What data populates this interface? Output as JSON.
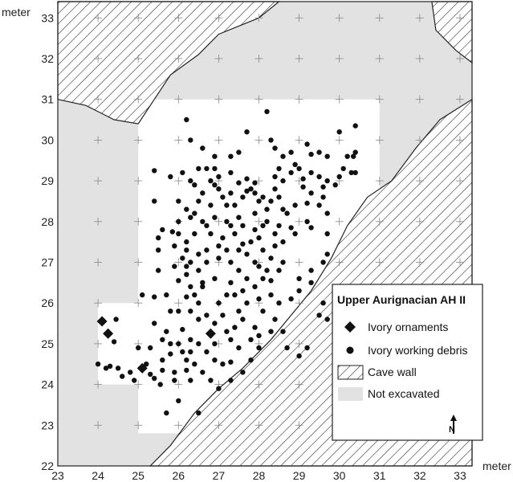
{
  "chart_data": {
    "type": "scatter",
    "title": "",
    "xlabel": "meter",
    "ylabel": "meter",
    "xlim": [
      23,
      33.3
    ],
    "ylim": [
      22,
      33.4
    ],
    "x_ticks": [
      "23",
      "24",
      "25",
      "26",
      "27",
      "28",
      "29",
      "30",
      "31",
      "32",
      "33"
    ],
    "y_ticks": [
      "22",
      "23",
      "24",
      "25",
      "26",
      "27",
      "28",
      "29",
      "30",
      "31",
      "32",
      "33"
    ],
    "grid": "cross markers at integer meter intersections",
    "colors": {
      "not_excavated": "#e2e2e2",
      "excavated": "#ffffff",
      "hatch": "#333333",
      "points": "#111111"
    },
    "regions": {
      "not_excavated": [
        [
          23,
          22
        ],
        [
          33.3,
          22
        ],
        [
          33.3,
          33.4
        ],
        [
          23,
          33.4
        ]
      ],
      "excavated": [
        [
          24,
          24
        ],
        [
          25,
          24
        ],
        [
          25,
          22.8
        ],
        [
          31,
          22.8
        ],
        [
          31,
          31
        ],
        [
          25,
          31
        ],
        [
          25,
          30
        ],
        [
          25,
          26
        ],
        [
          24,
          26
        ]
      ],
      "cave_wall": [
        [
          [
            23,
            33.4
          ],
          [
            28.5,
            33.4
          ],
          [
            28.0,
            33.0
          ],
          [
            27.0,
            32.6
          ],
          [
            26.5,
            32.1
          ],
          [
            25.8,
            31.6
          ],
          [
            25.4,
            31.0
          ],
          [
            25.0,
            30.4
          ],
          [
            24.4,
            30.5
          ],
          [
            23.7,
            30.85
          ],
          [
            23,
            31.0
          ]
        ],
        [
          [
            32.3,
            33.4
          ],
          [
            33.3,
            33.4
          ],
          [
            33.3,
            31.9
          ],
          [
            32.9,
            32.2
          ],
          [
            32.4,
            32.7
          ]
        ],
        [
          [
            33.3,
            31.0
          ],
          [
            33.3,
            22
          ],
          [
            25.3,
            22
          ],
          [
            25.8,
            22.5
          ],
          [
            26.4,
            23.3
          ],
          [
            27.0,
            23.9
          ],
          [
            27.6,
            24.4
          ],
          [
            28.3,
            25.1
          ],
          [
            28.8,
            25.7
          ],
          [
            29.3,
            26.3
          ],
          [
            29.8,
            27.1
          ],
          [
            30.2,
            27.9
          ],
          [
            30.7,
            28.6
          ],
          [
            31.3,
            29.0
          ],
          [
            31.9,
            29.8
          ],
          [
            32.5,
            30.5
          ]
        ]
      ]
    },
    "legend": {
      "placement": "bottom-right",
      "title": "Upper Aurignacian AH II",
      "entries": [
        "Ivory ornaments",
        "Ivory working debris",
        "Cave wall",
        "Not excavated"
      ],
      "north_label": "N"
    },
    "series": [
      {
        "name": "Ivory ornaments",
        "marker": "diamond",
        "points": [
          [
            24.1,
            25.55
          ],
          [
            24.25,
            25.25
          ],
          [
            25.1,
            24.4
          ],
          [
            26.8,
            25.25
          ]
        ]
      },
      {
        "name": "Ivory working debris",
        "marker": "circle",
        "points": [
          [
            24.0,
            24.5
          ],
          [
            24.3,
            24.45
          ],
          [
            24.45,
            25.6
          ],
          [
            24.5,
            24.4
          ],
          [
            24.8,
            24.3
          ],
          [
            25.3,
            24.25
          ],
          [
            25.55,
            24.0
          ],
          [
            25.6,
            24.35
          ],
          [
            25.4,
            24.15
          ],
          [
            25.8,
            24.75
          ],
          [
            25.9,
            24.1
          ],
          [
            26.0,
            23.6
          ],
          [
            26.3,
            24.1
          ],
          [
            26.2,
            24.35
          ],
          [
            26.2,
            24.6
          ],
          [
            26.5,
            23.3
          ],
          [
            25.7,
            23.3
          ],
          [
            25.4,
            26.15
          ],
          [
            25.7,
            26.2
          ],
          [
            25.1,
            26.2
          ],
          [
            25.5,
            27.6
          ],
          [
            25.6,
            27.8
          ],
          [
            25.85,
            27.75
          ],
          [
            25.9,
            26.9
          ],
          [
            25.8,
            25.8
          ],
          [
            26.0,
            25.8
          ],
          [
            26.0,
            26.55
          ],
          [
            26.2,
            26.7
          ],
          [
            26.2,
            26.9
          ],
          [
            26.1,
            27.1
          ],
          [
            26.0,
            27.7
          ],
          [
            26.4,
            27.7
          ],
          [
            26.7,
            27.3
          ],
          [
            26.3,
            27.0
          ],
          [
            26.5,
            26.8
          ],
          [
            26.6,
            26.5
          ],
          [
            26.4,
            26.2
          ],
          [
            26.3,
            25.8
          ],
          [
            26.5,
            25.6
          ],
          [
            26.7,
            25.7
          ],
          [
            26.1,
            25.35
          ],
          [
            26.3,
            25.1
          ],
          [
            26.5,
            25.0
          ],
          [
            26.7,
            24.8
          ],
          [
            26.9,
            25.0
          ],
          [
            26.3,
            24.8
          ],
          [
            26.0,
            25.0
          ],
          [
            25.9,
            24.3
          ],
          [
            26.8,
            24.1
          ],
          [
            26.9,
            24.6
          ],
          [
            27.1,
            24.5
          ],
          [
            27.3,
            24.55
          ],
          [
            27.5,
            24.9
          ],
          [
            27.2,
            25.3
          ],
          [
            27.3,
            25.1
          ],
          [
            27.0,
            26.0
          ],
          [
            27.3,
            26.5
          ],
          [
            27.5,
            26.8
          ],
          [
            27.3,
            27.0
          ],
          [
            27.0,
            27.4
          ],
          [
            27.4,
            27.7
          ],
          [
            27.2,
            28.0
          ],
          [
            27.5,
            28.1
          ],
          [
            27.2,
            28.4
          ],
          [
            27.3,
            28.7
          ],
          [
            27.0,
            28.8
          ],
          [
            26.8,
            29.0
          ],
          [
            26.8,
            28.4
          ],
          [
            26.6,
            28.0
          ],
          [
            26.5,
            28.5
          ],
          [
            26.3,
            29.0
          ],
          [
            26.1,
            29.2
          ],
          [
            25.8,
            29.1
          ],
          [
            25.4,
            29.25
          ],
          [
            26.0,
            28.5
          ],
          [
            26.2,
            27.5
          ],
          [
            27.6,
            28.6
          ],
          [
            27.7,
            28.75
          ],
          [
            27.8,
            28.8
          ],
          [
            27.9,
            28.7
          ],
          [
            28.0,
            28.5
          ],
          [
            28.2,
            28.3
          ],
          [
            28.3,
            28.5
          ],
          [
            28.5,
            28.6
          ],
          [
            28.4,
            28.8
          ],
          [
            28.6,
            29.0
          ],
          [
            28.8,
            29.2
          ],
          [
            29.0,
            29.3
          ],
          [
            29.1,
            29.05
          ],
          [
            29.3,
            29.2
          ],
          [
            29.5,
            29.1
          ],
          [
            29.7,
            29.0
          ],
          [
            29.9,
            28.9
          ],
          [
            30.1,
            29.3
          ],
          [
            30.3,
            29.2
          ],
          [
            30.35,
            29.6
          ],
          [
            30.4,
            29.7
          ],
          [
            30.4,
            30.35
          ],
          [
            30.0,
            30.2
          ],
          [
            29.7,
            29.6
          ],
          [
            29.2,
            29.9
          ],
          [
            28.8,
            29.7
          ],
          [
            28.2,
            30.7
          ],
          [
            27.7,
            30.2
          ],
          [
            28.3,
            30.0
          ],
          [
            27.5,
            29.7
          ],
          [
            27.3,
            29.6
          ],
          [
            26.9,
            29.6
          ],
          [
            26.3,
            30.0
          ],
          [
            26.2,
            30.5
          ],
          [
            28.6,
            29.6
          ],
          [
            29.5,
            29.7
          ],
          [
            28.0,
            27.6
          ],
          [
            28.1,
            27.3
          ],
          [
            28.3,
            27.1
          ],
          [
            28.0,
            26.9
          ],
          [
            28.2,
            26.8
          ],
          [
            28.3,
            26.55
          ],
          [
            28.0,
            26.1
          ],
          [
            28.1,
            25.8
          ],
          [
            27.9,
            25.4
          ],
          [
            28.0,
            25.2
          ],
          [
            27.8,
            25.1
          ],
          [
            28.0,
            24.9
          ],
          [
            27.6,
            26.3
          ],
          [
            27.5,
            25.8
          ],
          [
            27.7,
            27.2
          ],
          [
            27.6,
            27.45
          ],
          [
            27.8,
            27.5
          ],
          [
            27.9,
            27.8
          ],
          [
            28.2,
            28.0
          ],
          [
            28.7,
            28.2
          ],
          [
            28.8,
            27.85
          ],
          [
            28.9,
            27.7
          ],
          [
            29.2,
            28.0
          ],
          [
            29.3,
            27.85
          ],
          [
            29.2,
            28.45
          ],
          [
            29.5,
            28.4
          ],
          [
            29.3,
            28.7
          ],
          [
            29.6,
            28.6
          ],
          [
            29.7,
            28.2
          ],
          [
            29.7,
            27.7
          ],
          [
            29.7,
            27.2
          ],
          [
            29.6,
            27.0
          ],
          [
            29.3,
            26.8
          ],
          [
            29.3,
            26.5
          ],
          [
            29.0,
            26.6
          ],
          [
            29.0,
            26.3
          ],
          [
            28.8,
            26.1
          ],
          [
            29.6,
            26.0
          ],
          [
            29.7,
            25.6
          ],
          [
            29.5,
            25.7
          ],
          [
            29.2,
            24.9
          ],
          [
            29.0,
            24.7
          ],
          [
            30.4,
            29.2
          ],
          [
            30.2,
            29.6
          ],
          [
            28.4,
            29.8
          ],
          [
            28.5,
            29.3
          ],
          [
            28.4,
            29.1
          ],
          [
            28.9,
            29.4
          ],
          [
            29.3,
            29.65
          ],
          [
            29.6,
            28.85
          ],
          [
            30.0,
            29.1
          ],
          [
            29.1,
            28.85
          ],
          [
            28.9,
            28.4
          ],
          [
            28.6,
            28.3
          ],
          [
            28.5,
            27.9
          ],
          [
            28.1,
            28.6
          ],
          [
            27.9,
            28.95
          ],
          [
            27.7,
            29.05
          ],
          [
            27.5,
            28.95
          ],
          [
            26.9,
            28.9
          ],
          [
            27.1,
            28.6
          ],
          [
            26.7,
            29.3
          ],
          [
            26.6,
            29.8
          ],
          [
            25.4,
            28.5
          ],
          [
            25.5,
            27.3
          ],
          [
            25.5,
            26.8
          ],
          [
            25.6,
            25.1
          ],
          [
            25.4,
            25.5
          ],
          [
            25.7,
            25.3
          ],
          [
            25.6,
            24.6
          ],
          [
            25.2,
            24.5
          ],
          [
            25.0,
            24.9
          ],
          [
            25.3,
            24.9
          ],
          [
            24.9,
            24.1
          ],
          [
            24.2,
            24.4
          ],
          [
            24.6,
            24.2
          ],
          [
            24.4,
            25.05
          ],
          [
            25.8,
            25.0
          ],
          [
            26.5,
            26.0
          ],
          [
            26.2,
            26.15
          ],
          [
            26.6,
            26.4
          ],
          [
            26.3,
            26.4
          ],
          [
            26.9,
            26.6
          ],
          [
            26.7,
            27.0
          ],
          [
            27.0,
            27.1
          ],
          [
            26.8,
            27.7
          ],
          [
            27.1,
            27.6
          ],
          [
            27.3,
            27.9
          ],
          [
            26.9,
            28.1
          ],
          [
            26.7,
            27.9
          ],
          [
            26.4,
            28.2
          ],
          [
            26.2,
            28.3
          ],
          [
            26.6,
            28.7
          ],
          [
            26.4,
            28.9
          ],
          [
            27.6,
            27.9
          ],
          [
            27.9,
            28.2
          ],
          [
            28.1,
            27.9
          ],
          [
            28.4,
            27.7
          ],
          [
            28.6,
            27.5
          ],
          [
            28.4,
            27.4
          ],
          [
            28.6,
            27.0
          ],
          [
            28.5,
            26.8
          ],
          [
            28.3,
            26.2
          ],
          [
            28.5,
            26.0
          ],
          [
            28.4,
            25.6
          ],
          [
            28.6,
            25.3
          ],
          [
            28.3,
            25.3
          ],
          [
            28.7,
            24.9
          ],
          [
            27.8,
            24.6
          ],
          [
            27.6,
            24.3
          ],
          [
            27.3,
            24.1
          ],
          [
            27.0,
            23.9
          ],
          [
            26.6,
            24.3
          ],
          [
            26.4,
            24.5
          ],
          [
            26.1,
            24.8
          ],
          [
            26.9,
            25.5
          ],
          [
            27.1,
            25.7
          ],
          [
            27.4,
            25.4
          ],
          [
            27.6,
            25.6
          ],
          [
            27.2,
            26.2
          ],
          [
            27.4,
            26.2
          ],
          [
            27.7,
            26.0
          ],
          [
            27.9,
            26.4
          ],
          [
            27.7,
            26.6
          ],
          [
            28.1,
            26.6
          ],
          [
            27.9,
            27.0
          ],
          [
            27.2,
            27.3
          ],
          [
            27.5,
            27.3
          ],
          [
            26.5,
            27.2
          ],
          [
            26.2,
            27.3
          ],
          [
            25.9,
            27.4
          ],
          [
            26.0,
            28.0
          ],
          [
            26.3,
            28.1
          ],
          [
            26.5,
            29.3
          ],
          [
            26.9,
            29.3
          ],
          [
            27.0,
            29.1
          ],
          [
            27.3,
            29.2
          ],
          [
            27.4,
            28.4
          ]
        ]
      }
    ]
  }
}
